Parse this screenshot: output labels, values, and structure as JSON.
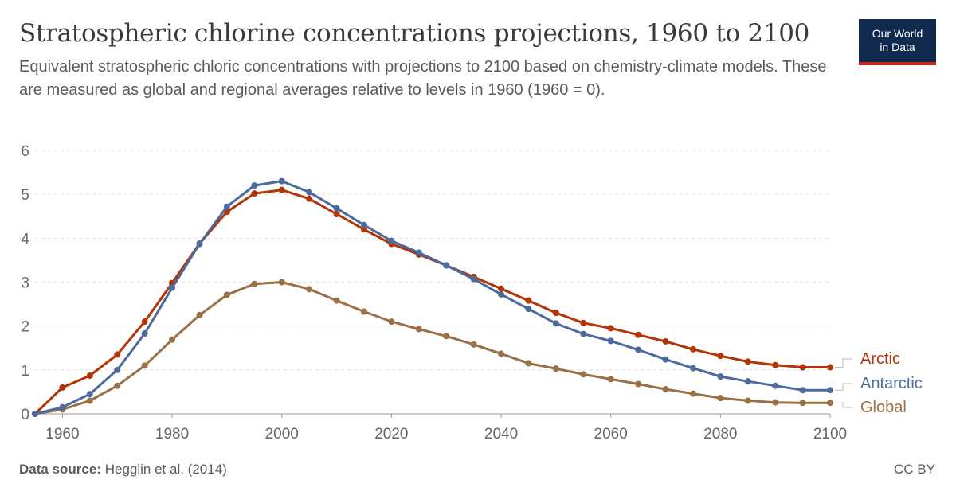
{
  "header": {
    "title": "Stratospheric chlorine concentrations projections, 1960 to 2100",
    "subtitle": "Equivalent stratospheric chloric concentrations with projections to 2100 based on chemistry-climate models. These are measured as global and regional averages relative to levels in 1960 (1960 = 0).",
    "logo_line1": "Our World",
    "logo_line2": "in Data"
  },
  "footer": {
    "source_label": "Data source:",
    "source_text": "Hegglin et al. (2014)",
    "license": "CC BY"
  },
  "colors": {
    "Arctic": "#b13507",
    "Antarctic": "#4c6a9c",
    "Global": "#9a7047",
    "grid": "#dddddd",
    "axis_text": "#666666"
  },
  "chart_data": {
    "type": "line",
    "title": "Stratospheric chlorine concentrations projections, 1960 to 2100",
    "xlabel": "",
    "ylabel": "",
    "xlim": [
      1955,
      2100
    ],
    "ylim": [
      0,
      6
    ],
    "x_ticks": [
      1960,
      1980,
      2000,
      2020,
      2040,
      2060,
      2080,
      2100
    ],
    "y_ticks": [
      0,
      1,
      2,
      3,
      4,
      5,
      6
    ],
    "grid": "horizontal-dashed",
    "legend": "right-end-labels",
    "x": [
      1955,
      1960,
      1965,
      1970,
      1975,
      1980,
      1985,
      1990,
      1995,
      2000,
      2005,
      2010,
      2015,
      2020,
      2025,
      2030,
      2035,
      2040,
      2045,
      2050,
      2055,
      2060,
      2065,
      2070,
      2075,
      2080,
      2085,
      2090,
      2095,
      2100
    ],
    "series": [
      {
        "name": "Arctic",
        "values": [
          0,
          0.6,
          0.87,
          1.35,
          2.1,
          2.98,
          3.88,
          4.6,
          5.02,
          5.1,
          4.9,
          4.55,
          4.2,
          3.87,
          3.63,
          3.38,
          3.12,
          2.85,
          2.58,
          2.3,
          2.07,
          1.95,
          1.8,
          1.65,
          1.47,
          1.32,
          1.19,
          1.11,
          1.06,
          1.06
        ]
      },
      {
        "name": "Antarctic",
        "values": [
          0,
          0.15,
          0.45,
          1.0,
          1.83,
          2.87,
          3.87,
          4.72,
          5.2,
          5.3,
          5.05,
          4.68,
          4.3,
          3.94,
          3.67,
          3.38,
          3.07,
          2.72,
          2.39,
          2.06,
          1.82,
          1.66,
          1.46,
          1.24,
          1.04,
          0.85,
          0.74,
          0.64,
          0.54,
          0.54
        ]
      },
      {
        "name": "Global",
        "values": [
          0,
          0.1,
          0.3,
          0.64,
          1.1,
          1.69,
          2.25,
          2.71,
          2.96,
          3.0,
          2.84,
          2.58,
          2.33,
          2.1,
          1.93,
          1.77,
          1.58,
          1.37,
          1.15,
          1.03,
          0.9,
          0.79,
          0.68,
          0.56,
          0.46,
          0.36,
          0.3,
          0.26,
          0.25,
          0.25
        ]
      }
    ]
  }
}
